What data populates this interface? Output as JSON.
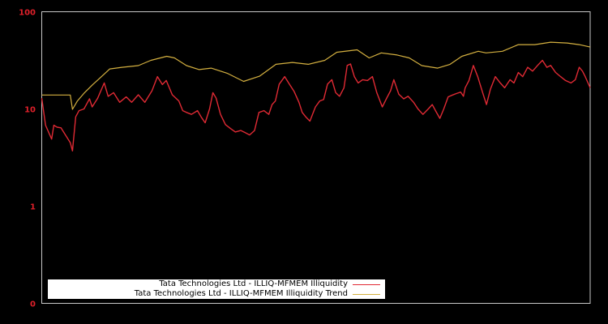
{
  "colors": {
    "background": "#000000",
    "frame": "#c8c8c8",
    "tick_label": "#e0202a",
    "illiquidity": "#e02a34",
    "trend": "#d4b040",
    "legend_bg": "#ffffff",
    "legend_text": "#000000"
  },
  "axes": {
    "y_ticks": [
      {
        "label": "100",
        "value": 100
      },
      {
        "label": "10",
        "value": 10
      },
      {
        "label": "1",
        "value": 1
      },
      {
        "label": "0",
        "value": 0.1
      }
    ]
  },
  "legend": {
    "items": [
      {
        "label": "Tata Technologies Ltd - ILLIQ-MFMEM Illiquidity",
        "color": "#e02a34"
      },
      {
        "label": "Tata Technologies Ltd - ILLIQ-MFMEM Illiquidity Trend",
        "color": "#d4b040"
      }
    ]
  },
  "chart_data": {
    "type": "line",
    "title": "",
    "xlabel": "",
    "ylabel": "",
    "y_scale": "log",
    "ylim": [
      0.1,
      100
    ],
    "y_tick_labels": [
      "0",
      "1",
      "10",
      "100"
    ],
    "x_tick_labels": [],
    "grid": false,
    "legend_position": "bottom-left inside",
    "x_range": [
      0,
      100
    ],
    "series": [
      {
        "name": "Tata Technologies Ltd - ILLIQ-MFMEM Illiquidity",
        "color": "#e02a34",
        "x": [
          0,
          0.7,
          1.8,
          2.2,
          2.8,
          3.5,
          4.6,
          5.2,
          5.6,
          6.2,
          6.8,
          7.7,
          8.7,
          9.2,
          10.2,
          11.4,
          12.1,
          13.1,
          14.2,
          15.4,
          16.4,
          17.6,
          18.8,
          20.1,
          21.1,
          22.0,
          22.7,
          23.8,
          25.0,
          25.7,
          26.4,
          27.3,
          28.4,
          29.1,
          29.8,
          30.6,
          31.2,
          31.8,
          32.6,
          33.5,
          34.4,
          35.3,
          36.3,
          37.1,
          37.9,
          38.8,
          39.6,
          40.5,
          41.4,
          42.0,
          42.6,
          43.3,
          44.3,
          45.2,
          46.0,
          46.9,
          47.5,
          48.2,
          48.9,
          49.9,
          50.7,
          51.4,
          52.1,
          52.9,
          53.6,
          54.3,
          55.1,
          55.7,
          56.3,
          57.0,
          57.7,
          58.5,
          59.4,
          60.3,
          61.1,
          62.1,
          62.9,
          63.6,
          64.2,
          65.1,
          66.0,
          66.8,
          67.8,
          68.6,
          69.5,
          70.4,
          71.2,
          71.8,
          72.6,
          73.3,
          74.1,
          74.9,
          75.6,
          76.4,
          76.9,
          77.2,
          77.9,
          78.7,
          79.5,
          80.4,
          81.1,
          81.8,
          82.7,
          83.6,
          84.4,
          85.4,
          86.1,
          86.9,
          87.7,
          88.6,
          89.5,
          90.4,
          91.3,
          92.1,
          92.8,
          93.7,
          94.6,
          95.5,
          96.5,
          97.3,
          98.0,
          98.6,
          99.1,
          100
        ],
        "values": [
          12.9,
          6.8,
          4.9,
          6.8,
          6.5,
          6.4,
          5.1,
          4.5,
          3.7,
          8.3,
          9.6,
          10.0,
          12.7,
          10.5,
          12.9,
          18.5,
          13.5,
          14.7,
          11.7,
          13.3,
          11.7,
          14.0,
          11.7,
          15.4,
          21.5,
          17.8,
          19.6,
          14.0,
          12.1,
          9.6,
          9.2,
          8.8,
          9.6,
          8.2,
          7.2,
          10.0,
          14.7,
          12.9,
          8.8,
          6.9,
          6.3,
          5.8,
          6.0,
          5.7,
          5.4,
          6.0,
          9.2,
          9.6,
          8.8,
          11.1,
          12.1,
          18.0,
          21.5,
          17.8,
          15.2,
          11.7,
          9.2,
          8.2,
          7.5,
          10.5,
          12.1,
          12.5,
          18.0,
          20.0,
          14.7,
          13.5,
          16.5,
          28.0,
          29.0,
          21.5,
          18.5,
          20.0,
          19.6,
          21.5,
          14.7,
          10.5,
          12.9,
          15.4,
          20.0,
          14.2,
          12.7,
          13.5,
          11.7,
          10.0,
          8.8,
          9.9,
          11.1,
          9.6,
          8.0,
          10.0,
          13.3,
          13.9,
          14.4,
          14.9,
          13.5,
          16.5,
          19.6,
          28.0,
          21.5,
          14.7,
          11.1,
          15.9,
          21.5,
          18.5,
          16.5,
          20.0,
          18.5,
          23.7,
          21.5,
          26.8,
          24.5,
          28.0,
          31.6,
          26.8,
          28.0,
          23.7,
          21.5,
          19.6,
          18.5,
          20.0,
          26.8,
          24.5,
          21.5,
          16.5
        ]
      },
      {
        "name": "Tata Technologies Ltd - ILLIQ-MFMEM Illiquidity Trend",
        "color": "#d4b040",
        "x": [
          0,
          5.2,
          5.6,
          6.5,
          7.8,
          9.3,
          10.9,
          12.4,
          14.6,
          17.6,
          19.9,
          22.8,
          24.2,
          26.4,
          28.7,
          30.9,
          33.8,
          36.8,
          39.7,
          42.7,
          45.7,
          48.6,
          51.6,
          53.8,
          57.5,
          59.7,
          61.9,
          64.8,
          67.0,
          69.3,
          72.2,
          74.4,
          76.6,
          79.6,
          81.0,
          84.0,
          86.9,
          89.9,
          92.8,
          95.8,
          98.0,
          100
        ],
        "values": [
          13.9,
          13.9,
          9.9,
          12.1,
          14.7,
          17.8,
          21.5,
          25.8,
          26.8,
          27.9,
          31.6,
          34.8,
          33.5,
          27.9,
          25.4,
          26.3,
          23.3,
          19.2,
          21.7,
          28.8,
          30.1,
          28.8,
          31.6,
          38.3,
          40.6,
          33.5,
          37.7,
          35.9,
          33.5,
          27.9,
          26.3,
          28.7,
          34.8,
          39.2,
          37.7,
          39.2,
          45.9,
          45.9,
          48.6,
          47.7,
          45.9,
          43.3
        ]
      }
    ]
  }
}
